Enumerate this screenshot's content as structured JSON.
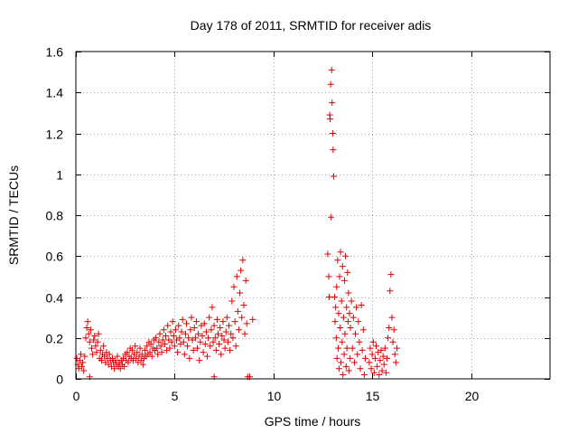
{
  "chart_data": {
    "type": "scatter",
    "title": "Day 178 of 2011, SRMTID for receiver adis",
    "xlabel": "GPS time / hours",
    "ylabel": "SRMTID / TECUs",
    "xlim": [
      0,
      24
    ],
    "ylim": [
      0,
      1.6
    ],
    "x_ticks": [
      0,
      5,
      10,
      15,
      20
    ],
    "x_tick_labels": [
      "0",
      "5",
      "10",
      "15",
      "20"
    ],
    "y_ticks": [
      0,
      0.2,
      0.4,
      0.6,
      0.8,
      1.0,
      1.2,
      1.4,
      1.6
    ],
    "y_tick_labels": [
      "0",
      "0.2",
      "0.4",
      "0.6",
      "0.8",
      "1",
      "1.2",
      "1.4",
      "1.6"
    ],
    "grid": true,
    "marker": "+",
    "series": [
      {
        "name": "SRMTID",
        "color": "#e00000",
        "points": [
          [
            0.05,
            0.1
          ],
          [
            0.1,
            0.07
          ],
          [
            0.15,
            0.05
          ],
          [
            0.2,
            0.09
          ],
          [
            0.25,
            0.12
          ],
          [
            0.3,
            0.06
          ],
          [
            0.35,
            0.08
          ],
          [
            0.4,
            0.04
          ],
          [
            0.45,
            0.11
          ],
          [
            0.5,
            0.2
          ],
          [
            0.55,
            0.25
          ],
          [
            0.6,
            0.28
          ],
          [
            0.65,
            0.22
          ],
          [
            0.7,
            0.18
          ],
          [
            0.75,
            0.24
          ],
          [
            0.8,
            0.15
          ],
          [
            0.85,
            0.12
          ],
          [
            0.9,
            0.19
          ],
          [
            0.95,
            0.21
          ],
          [
            1.0,
            0.16
          ],
          [
            1.05,
            0.13
          ],
          [
            1.1,
            0.18
          ],
          [
            1.15,
            0.22
          ],
          [
            1.2,
            0.1
          ],
          [
            1.25,
            0.14
          ],
          [
            1.3,
            0.09
          ],
          [
            1.35,
            0.12
          ],
          [
            1.4,
            0.16
          ],
          [
            1.45,
            0.11
          ],
          [
            1.5,
            0.08
          ],
          [
            1.55,
            0.13
          ],
          [
            1.6,
            0.1
          ],
          [
            1.65,
            0.07
          ],
          [
            1.7,
            0.12
          ],
          [
            1.75,
            0.09
          ],
          [
            1.8,
            0.06
          ],
          [
            1.85,
            0.1
          ],
          [
            1.9,
            0.08
          ],
          [
            1.95,
            0.05
          ],
          [
            2.0,
            0.09
          ],
          [
            2.05,
            0.07
          ],
          [
            2.1,
            0.11
          ],
          [
            2.15,
            0.06
          ],
          [
            2.2,
            0.08
          ],
          [
            2.25,
            0.05
          ],
          [
            2.3,
            0.09
          ],
          [
            2.35,
            0.07
          ],
          [
            2.4,
            0.1
          ],
          [
            2.45,
            0.06
          ],
          [
            2.5,
            0.12
          ],
          [
            2.55,
            0.09
          ],
          [
            2.6,
            0.13
          ],
          [
            2.65,
            0.08
          ],
          [
            2.7,
            0.11
          ],
          [
            2.75,
            0.15
          ],
          [
            2.8,
            0.1
          ],
          [
            2.85,
            0.14
          ],
          [
            2.9,
            0.09
          ],
          [
            2.95,
            0.12
          ],
          [
            3.0,
            0.16
          ],
          [
            3.05,
            0.1
          ],
          [
            3.1,
            0.13
          ],
          [
            3.15,
            0.08
          ],
          [
            3.2,
            0.11
          ],
          [
            3.25,
            0.15
          ],
          [
            3.3,
            0.09
          ],
          [
            3.35,
            0.12
          ],
          [
            3.4,
            0.07
          ],
          [
            3.45,
            0.1
          ],
          [
            3.5,
            0.14
          ],
          [
            3.55,
            0.11
          ],
          [
            3.6,
            0.16
          ],
          [
            3.65,
            0.12
          ],
          [
            3.7,
            0.18
          ],
          [
            3.75,
            0.13
          ],
          [
            3.8,
            0.17
          ],
          [
            3.85,
            0.11
          ],
          [
            3.9,
            0.15
          ],
          [
            3.95,
            0.19
          ],
          [
            4.0,
            0.14
          ],
          [
            4.05,
            0.2
          ],
          [
            4.1,
            0.15
          ],
          [
            4.15,
            0.12
          ],
          [
            4.2,
            0.18
          ],
          [
            4.25,
            0.22
          ],
          [
            4.3,
            0.16
          ],
          [
            4.35,
            0.13
          ],
          [
            4.4,
            0.19
          ],
          [
            4.45,
            0.24
          ],
          [
            4.5,
            0.17
          ],
          [
            4.55,
            0.21
          ],
          [
            4.6,
            0.14
          ],
          [
            4.65,
            0.26
          ],
          [
            4.7,
            0.19
          ],
          [
            4.75,
            0.15
          ],
          [
            4.8,
            0.23
          ],
          [
            4.85,
            0.18
          ],
          [
            4.9,
            0.28
          ],
          [
            4.95,
            0.21
          ],
          [
            5.0,
            0.16
          ],
          [
            5.05,
            0.24
          ],
          [
            5.1,
            0.19
          ],
          [
            5.15,
            0.13
          ],
          [
            5.2,
            0.26
          ],
          [
            5.25,
            0.2
          ],
          [
            5.3,
            0.17
          ],
          [
            5.35,
            0.23
          ],
          [
            5.4,
            0.29
          ],
          [
            5.45,
            0.18
          ],
          [
            5.5,
            0.12
          ],
          [
            5.55,
            0.22
          ],
          [
            5.6,
            0.27
          ],
          [
            5.65,
            0.16
          ],
          [
            5.7,
            0.2
          ],
          [
            5.75,
            0.1
          ],
          [
            5.8,
            0.24
          ],
          [
            5.85,
            0.3
          ],
          [
            5.9,
            0.19
          ],
          [
            5.95,
            0.14
          ],
          [
            6.0,
            0.25
          ],
          [
            6.05,
            0.2
          ],
          [
            6.1,
            0.28
          ],
          [
            6.15,
            0.15
          ],
          [
            6.2,
            0.22
          ],
          [
            6.25,
            0.09
          ],
          [
            6.3,
            0.18
          ],
          [
            6.35,
            0.26
          ],
          [
            6.4,
            0.21
          ],
          [
            6.45,
            0.13
          ],
          [
            6.5,
            0.27
          ],
          [
            6.55,
            0.17
          ],
          [
            6.6,
            0.23
          ],
          [
            6.65,
            0.11
          ],
          [
            6.7,
            0.2
          ],
          [
            6.75,
            0.3
          ],
          [
            6.8,
            0.16
          ],
          [
            6.85,
            0.24
          ],
          [
            6.9,
            0.35
          ],
          [
            6.95,
            0.18
          ],
          [
            7.0,
            0.26
          ],
          [
            7.05,
            0.2
          ],
          [
            7.1,
            0.14
          ],
          [
            7.15,
            0.29
          ],
          [
            7.2,
            0.22
          ],
          [
            7.25,
            0.17
          ],
          [
            7.3,
            0.25
          ],
          [
            7.35,
            0.12
          ],
          [
            7.4,
            0.21
          ],
          [
            7.45,
            0.28
          ],
          [
            7.5,
            0.19
          ],
          [
            7.55,
            0.15
          ],
          [
            7.6,
            0.23
          ],
          [
            7.65,
            0.3
          ],
          [
            7.7,
            0.18
          ],
          [
            7.75,
            0.26
          ],
          [
            7.8,
            0.14
          ],
          [
            7.85,
            0.22
          ],
          [
            7.9,
            0.38
          ],
          [
            7.95,
            0.2
          ],
          [
            8.0,
            0.45
          ],
          [
            8.05,
            0.28
          ],
          [
            8.1,
            0.16
          ],
          [
            8.15,
            0.5
          ],
          [
            8.2,
            0.33
          ],
          [
            8.25,
            0.24
          ],
          [
            8.3,
            0.42
          ],
          [
            8.35,
            0.53
          ],
          [
            8.4,
            0.3
          ],
          [
            8.45,
            0.58
          ],
          [
            8.5,
            0.36
          ],
          [
            8.55,
            0.22
          ],
          [
            8.6,
            0.48
          ],
          [
            8.65,
            0.27
          ],
          [
            8.7,
            0.01
          ],
          [
            8.8,
            0.01
          ],
          [
            8.95,
            0.29
          ],
          [
            0.7,
            0.01
          ],
          [
            7.0,
            0.01
          ],
          [
            12.75,
            0.61
          ],
          [
            12.8,
            0.5
          ],
          [
            12.82,
            0.4
          ],
          [
            12.85,
            1.29
          ],
          [
            12.87,
            1.27
          ],
          [
            12.9,
            1.44
          ],
          [
            12.92,
            0.79
          ],
          [
            12.95,
            1.51
          ],
          [
            12.97,
            1.35
          ],
          [
            13.0,
            1.2
          ],
          [
            13.02,
            1.12
          ],
          [
            13.05,
            0.99
          ],
          [
            13.1,
            0.4
          ],
          [
            13.12,
            0.28
          ],
          [
            13.15,
            0.35
          ],
          [
            13.18,
            0.2
          ],
          [
            13.2,
            0.45
          ],
          [
            13.22,
            0.1
          ],
          [
            13.25,
            0.58
          ],
          [
            13.28,
            0.15
          ],
          [
            13.3,
            0.32
          ],
          [
            13.32,
            0.05
          ],
          [
            13.35,
            0.5
          ],
          [
            13.38,
            0.25
          ],
          [
            13.4,
            0.62
          ],
          [
            13.42,
            0.08
          ],
          [
            13.45,
            0.38
          ],
          [
            13.48,
            0.18
          ],
          [
            13.5,
            0.55
          ],
          [
            13.52,
            0.02
          ],
          [
            13.55,
            0.3
          ],
          [
            13.58,
            0.12
          ],
          [
            13.6,
            0.48
          ],
          [
            13.62,
            0.22
          ],
          [
            13.65,
            0.6
          ],
          [
            13.68,
            0.06
          ],
          [
            13.7,
            0.35
          ],
          [
            13.72,
            0.15
          ],
          [
            13.75,
            0.52
          ],
          [
            13.78,
            0.28
          ],
          [
            13.8,
            0.42
          ],
          [
            13.82,
            0.04
          ],
          [
            13.85,
            0.32
          ],
          [
            13.88,
            0.1
          ],
          [
            13.9,
            0.25
          ],
          [
            13.95,
            0.38
          ],
          [
            14.0,
            0.15
          ],
          [
            14.05,
            0.3
          ],
          [
            14.1,
            0.08
          ],
          [
            14.15,
            0.22
          ],
          [
            14.2,
            0.35
          ],
          [
            14.25,
            0.12
          ],
          [
            14.3,
            0.28
          ],
          [
            14.35,
            0.18
          ],
          [
            14.4,
            0.05
          ],
          [
            14.45,
            0.36
          ],
          [
            14.5,
            0.14
          ],
          [
            14.55,
            0.24
          ],
          [
            14.6,
            0.02
          ],
          [
            14.65,
            0.1
          ],
          [
            14.85,
            0.08
          ],
          [
            14.9,
            0.15
          ],
          [
            14.95,
            0.05
          ],
          [
            15.0,
            0.12
          ],
          [
            15.05,
            0.18
          ],
          [
            15.1,
            0.03
          ],
          [
            15.15,
            0.1
          ],
          [
            15.2,
            0.16
          ],
          [
            15.25,
            0.06
          ],
          [
            15.3,
            0.13
          ],
          [
            15.35,
            0.02
          ],
          [
            15.4,
            0.09
          ],
          [
            15.45,
            0.14
          ],
          [
            15.5,
            0.04
          ],
          [
            15.55,
            0.11
          ],
          [
            15.6,
            0.07
          ],
          [
            15.65,
            0.15
          ],
          [
            15.7,
            0.03
          ],
          [
            15.75,
            0.1
          ],
          [
            15.8,
            0.2
          ],
          [
            15.85,
            0.25
          ],
          [
            15.9,
            0.43
          ],
          [
            15.95,
            0.51
          ],
          [
            16.0,
            0.3
          ],
          [
            16.05,
            0.18
          ],
          [
            16.1,
            0.24
          ],
          [
            16.15,
            0.12
          ],
          [
            16.2,
            0.08
          ],
          [
            16.25,
            0.15
          ]
        ]
      }
    ]
  }
}
